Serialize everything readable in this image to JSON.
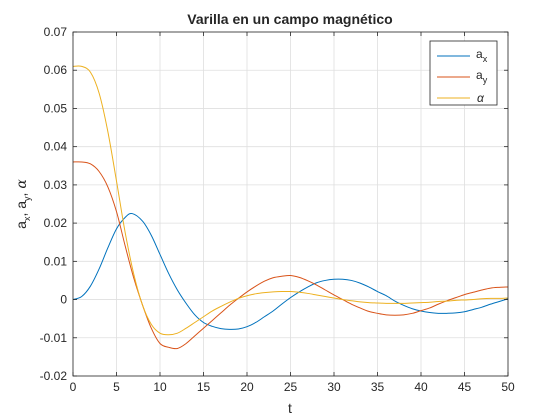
{
  "chart_data": {
    "type": "line",
    "title": "Varilla en un campo magnético",
    "xlabel": "t",
    "ylabel": "a_x, a_y, α",
    "xlim": [
      0,
      50
    ],
    "ylim": [
      -0.02,
      0.07
    ],
    "x_ticks": [
      "0",
      "5",
      "10",
      "15",
      "20",
      "25",
      "30",
      "35",
      "40",
      "45",
      "50"
    ],
    "y_ticks": [
      "-0.02",
      "-0.01",
      "0",
      "0.01",
      "0.02",
      "0.03",
      "0.04",
      "0.05",
      "0.06",
      "0.07"
    ],
    "grid": true,
    "legend_position": "top-right",
    "series": [
      {
        "name": "a_x",
        "color": "#0072BD",
        "x": [
          0,
          1,
          2,
          3,
          4,
          5,
          6,
          6.8,
          8,
          9,
          10,
          11,
          12,
          13,
          14,
          15,
          16,
          17,
          18,
          19,
          20,
          21,
          22,
          23,
          24,
          25,
          26,
          27,
          28,
          29,
          30,
          31,
          32,
          33,
          34,
          35,
          36,
          37,
          38,
          39,
          40,
          41,
          42,
          43,
          44,
          45,
          46,
          47,
          48,
          49,
          50
        ],
        "y": [
          0,
          0.0008,
          0.0035,
          0.008,
          0.0135,
          0.0185,
          0.0215,
          0.0225,
          0.0205,
          0.0168,
          0.0118,
          0.0068,
          0.0025,
          -0.001,
          -0.004,
          -0.006,
          -0.007,
          -0.0076,
          -0.0078,
          -0.0077,
          -0.0071,
          -0.006,
          -0.0045,
          -0.003,
          -0.0012,
          0.0005,
          0.002,
          0.0033,
          0.0044,
          0.005,
          0.0053,
          0.0053,
          0.005,
          0.0043,
          0.0033,
          0.0021,
          0.001,
          -0.0004,
          -0.0015,
          -0.0024,
          -0.003,
          -0.0034,
          -0.0036,
          -0.0036,
          -0.0035,
          -0.0032,
          -0.0026,
          -0.002,
          -0.0012,
          -0.0005,
          0.0002
        ]
      },
      {
        "name": "a_y",
        "color": "#D95319",
        "x": [
          0,
          1,
          2,
          3,
          4,
          5,
          6,
          7,
          8,
          9,
          10,
          11,
          12,
          13,
          14,
          15,
          16,
          17,
          18,
          19,
          20,
          21,
          22,
          23,
          24,
          25,
          26,
          27,
          28,
          29,
          30,
          31,
          32,
          33,
          34,
          35,
          36,
          37,
          38,
          39,
          40,
          41,
          42,
          43,
          44,
          45,
          46,
          47,
          48,
          49,
          50
        ],
        "y": [
          0.036,
          0.036,
          0.0355,
          0.0335,
          0.0295,
          0.023,
          0.014,
          0.0055,
          -0.0015,
          -0.0075,
          -0.0115,
          -0.0125,
          -0.0128,
          -0.0115,
          -0.0095,
          -0.0075,
          -0.0055,
          -0.0035,
          -0.0015,
          0.0003,
          0.002,
          0.0035,
          0.0048,
          0.0057,
          0.0061,
          0.0063,
          0.0058,
          0.0049,
          0.0038,
          0.0025,
          0.0012,
          0,
          -0.0012,
          -0.0022,
          -0.0031,
          -0.0036,
          -0.004,
          -0.0041,
          -0.004,
          -0.0036,
          -0.0029,
          -0.0022,
          -0.0012,
          -0.0003,
          0.0005,
          0.0013,
          0.0019,
          0.0025,
          0.003,
          0.0032,
          0.0033
        ]
      },
      {
        "name": "α",
        "color": "#EDB120",
        "x": [
          0,
          1,
          2,
          3,
          4,
          5,
          6,
          7,
          8,
          9,
          10,
          11,
          12,
          13,
          14,
          15,
          16,
          17,
          18,
          19,
          20,
          21,
          22,
          23,
          24,
          25,
          26,
          27,
          28,
          29,
          30,
          31,
          32,
          33,
          34,
          35,
          36,
          37,
          38,
          39,
          40,
          41,
          42,
          43,
          44,
          45,
          46,
          47,
          48,
          49,
          50
        ],
        "y": [
          0.061,
          0.061,
          0.0595,
          0.054,
          0.044,
          0.031,
          0.0175,
          0.0065,
          -0.0015,
          -0.0065,
          -0.0088,
          -0.0092,
          -0.0088,
          -0.0075,
          -0.006,
          -0.0045,
          -0.003,
          -0.0018,
          -0.0007,
          0.0003,
          0.001,
          0.0015,
          0.0018,
          0.002,
          0.0021,
          0.0021,
          0.0019,
          0.0016,
          0.0012,
          0.0008,
          0.0004,
          0,
          -0.0003,
          -0.0006,
          -0.0008,
          -0.0009,
          -0.001,
          -0.001,
          -0.001,
          -0.0009,
          -0.0008,
          -0.0007,
          -0.0005,
          -0.0004,
          -0.0002,
          -0.0001,
          0,
          0.0002,
          0.0003,
          0.0003,
          0.0004
        ]
      }
    ]
  }
}
